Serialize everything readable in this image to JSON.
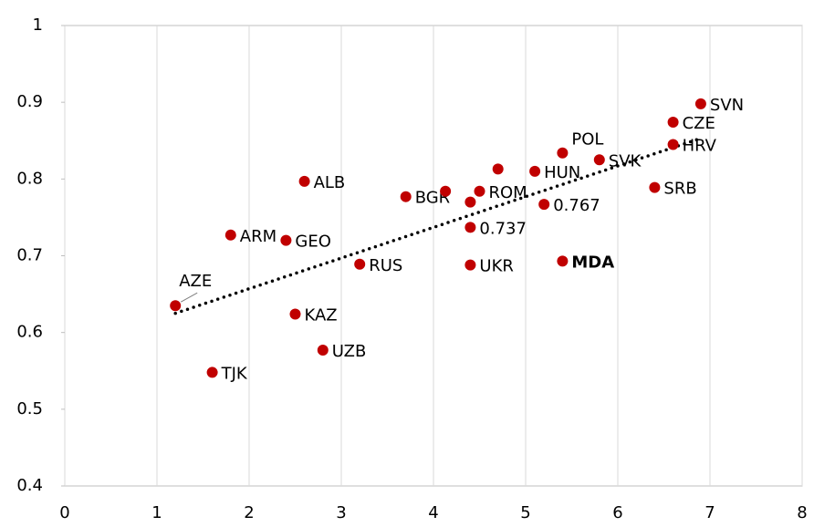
{
  "chart_data": {
    "type": "scatter",
    "color": "#c00000",
    "labels": [
      "AZE",
      "TJK",
      "ARM",
      "GEO",
      "ALB",
      "KAZ",
      "UZB",
      "RUS",
      "BGR",
      null,
      null,
      "ROM",
      "0.737",
      "UKR",
      null,
      "HUN",
      "POL",
      "0.767",
      "MDA",
      "SVK",
      "SRB",
      "CZE",
      "HRV",
      "SVN"
    ],
    "x": [
      1.2,
      1.6,
      1.8,
      2.4,
      2.6,
      2.5,
      2.8,
      3.2,
      3.7,
      4.13,
      4.4,
      4.5,
      4.4,
      4.4,
      4.7,
      5.1,
      5.4,
      5.2,
      5.4,
      5.8,
      6.4,
      6.6,
      6.6,
      6.9
    ],
    "values": [
      0.635,
      0.548,
      0.727,
      0.72,
      0.797,
      0.624,
      0.577,
      0.689,
      0.777,
      0.784,
      0.77,
      0.784,
      0.737,
      0.688,
      0.813,
      0.81,
      0.834,
      0.767,
      0.693,
      0.825,
      0.789,
      0.874,
      0.845,
      0.898
    ],
    "emphasis": "MDA",
    "trendline": {
      "x": [
        1.2,
        6.9
      ],
      "y": [
        0.625,
        0.853
      ]
    },
    "xlim": [
      0,
      8
    ],
    "xticks": [
      0,
      1,
      2,
      3,
      4,
      5,
      6,
      7,
      8
    ],
    "ylim": [
      0.4,
      1
    ],
    "yticks": [
      0.4,
      0.5,
      0.6,
      0.7,
      0.8,
      0.9,
      1
    ],
    "xgrid": true
  }
}
